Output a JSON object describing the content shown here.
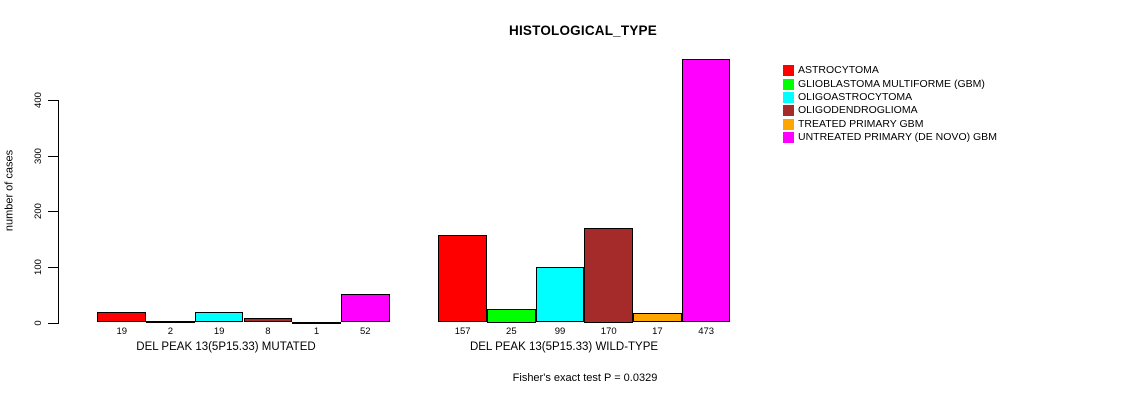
{
  "title": "HISTOLOGICAL_TYPE",
  "chart_data": {
    "type": "bar",
    "title": "HISTOLOGICAL_TYPE",
    "xlabel": "",
    "ylabel": "number of cases",
    "yticks": [
      0,
      100,
      200,
      300,
      400
    ],
    "ylim": [
      0,
      473
    ],
    "grid": false,
    "legend_position": "right",
    "categories": [
      "DEL PEAK 13(5P15.33) MUTATED",
      "DEL PEAK 13(5P15.33) WILD-TYPE"
    ],
    "series": [
      {
        "name": "ASTROCYTOMA",
        "color": "#FF0000",
        "values": [
          19,
          157
        ]
      },
      {
        "name": "GLIOBLASTOMA MULTIFORME (GBM)",
        "color": "#00FF00",
        "values": [
          2,
          25
        ]
      },
      {
        "name": "OLIGOASTROCYTOMA",
        "color": "#00FFFF",
        "values": [
          19,
          99
        ]
      },
      {
        "name": "OLIGODENDROGLIOMA",
        "color": "#A52A2A",
        "values": [
          8,
          170
        ]
      },
      {
        "name": "TREATED PRIMARY GBM",
        "color": "#FFA500",
        "values": [
          1,
          17
        ]
      },
      {
        "name": "UNTREATED PRIMARY (DE NOVO) GBM",
        "color": "#FF00FF",
        "values": [
          52,
          473
        ]
      }
    ],
    "bar_value_labels": true
  },
  "footer": {
    "stat_test": "Fisher's exact test P = 0.0329"
  }
}
